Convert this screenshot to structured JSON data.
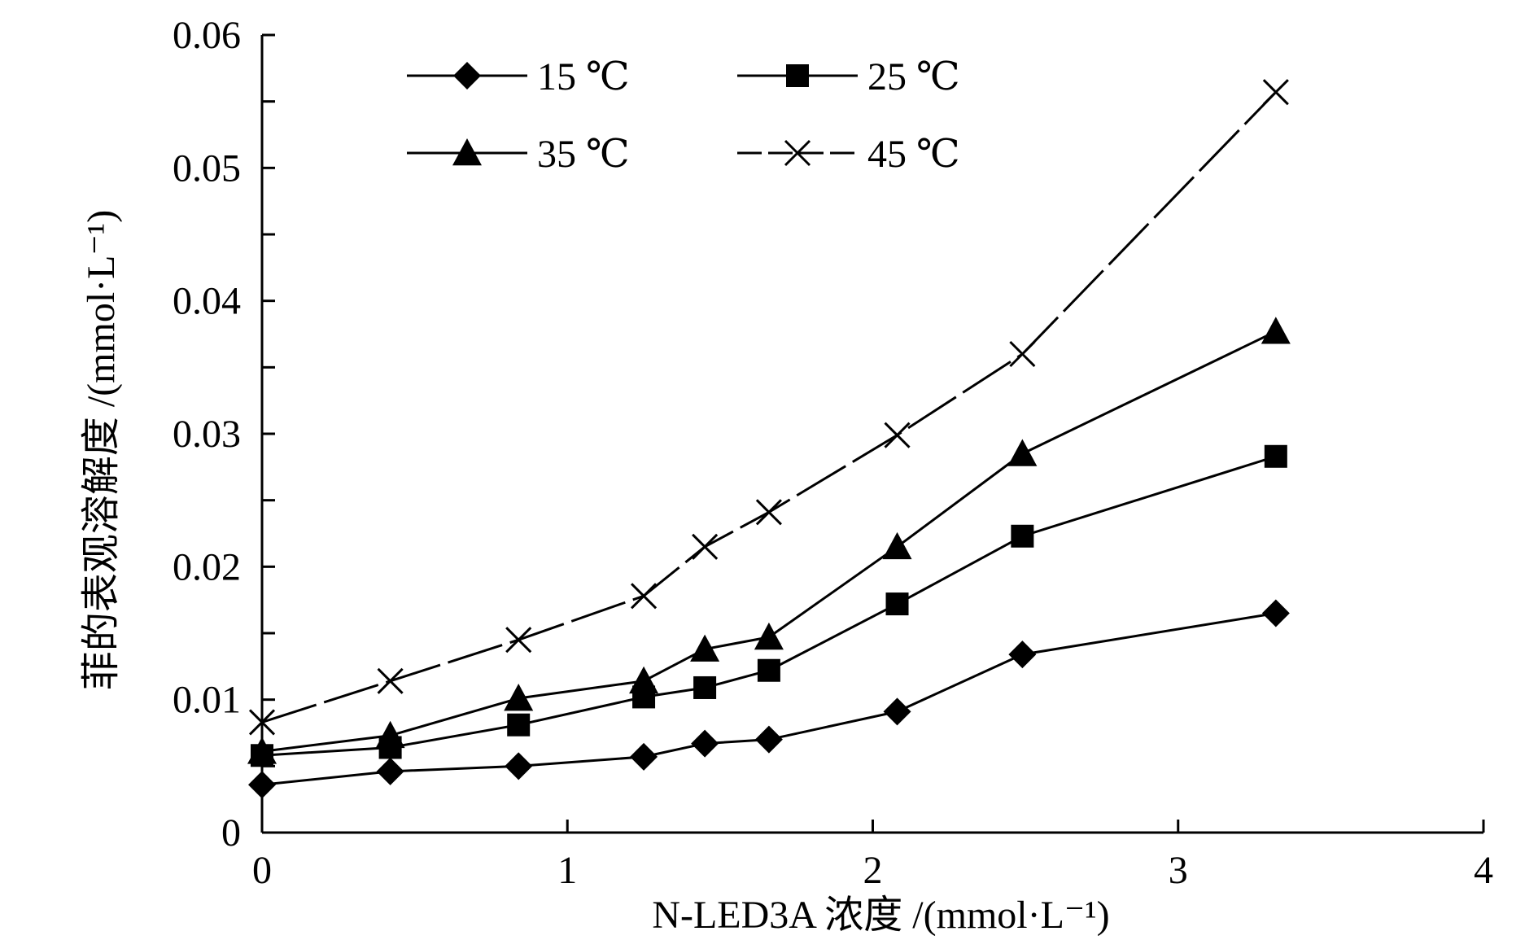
{
  "chart_data": {
    "type": "line",
    "title": "",
    "xlabel": "N-LED3A 浓度 /(mmol·L⁻¹)",
    "ylabel": "菲的表观溶解度 /(mmol·L⁻¹)",
    "xlim": [
      0,
      4
    ],
    "ylim": [
      0,
      0.06
    ],
    "x_ticks": [
      0,
      1,
      2,
      3,
      4
    ],
    "x_tick_labels": [
      "0",
      "1",
      "2",
      "3",
      "4"
    ],
    "y_ticks": [
      0,
      0.01,
      0.02,
      0.03,
      0.04,
      0.05,
      0.06
    ],
    "y_tick_labels": [
      "0",
      "0.01",
      "0.02",
      "0.03",
      "0.04",
      "0.05",
      "0.06"
    ],
    "grid": false,
    "legend_position": "top-left",
    "x": [
      0,
      0.42,
      0.84,
      1.25,
      1.45,
      1.66,
      2.08,
      2.49,
      3.32
    ],
    "series": [
      {
        "name": "15 ℃",
        "marker": "diamond",
        "dashed": false,
        "values": [
          0.0036,
          0.0046,
          0.005,
          0.0057,
          0.0067,
          0.007,
          0.0091,
          0.0134,
          0.0165
        ]
      },
      {
        "name": "25 ℃",
        "marker": "square",
        "dashed": false,
        "values": [
          0.0058,
          0.0064,
          0.0081,
          0.0102,
          0.0109,
          0.0122,
          0.0172,
          0.0223,
          0.0283
        ]
      },
      {
        "name": "35 ℃",
        "marker": "triangle",
        "dashed": false,
        "values": [
          0.0061,
          0.0073,
          0.0101,
          0.0114,
          0.0138,
          0.0147,
          0.0215,
          0.0285,
          0.0377
        ]
      },
      {
        "name": "45 ℃",
        "marker": "x",
        "dashed": true,
        "values": [
          0.0083,
          0.0114,
          0.0145,
          0.0178,
          0.0215,
          0.0241,
          0.0299,
          0.036,
          0.0557
        ]
      }
    ]
  }
}
